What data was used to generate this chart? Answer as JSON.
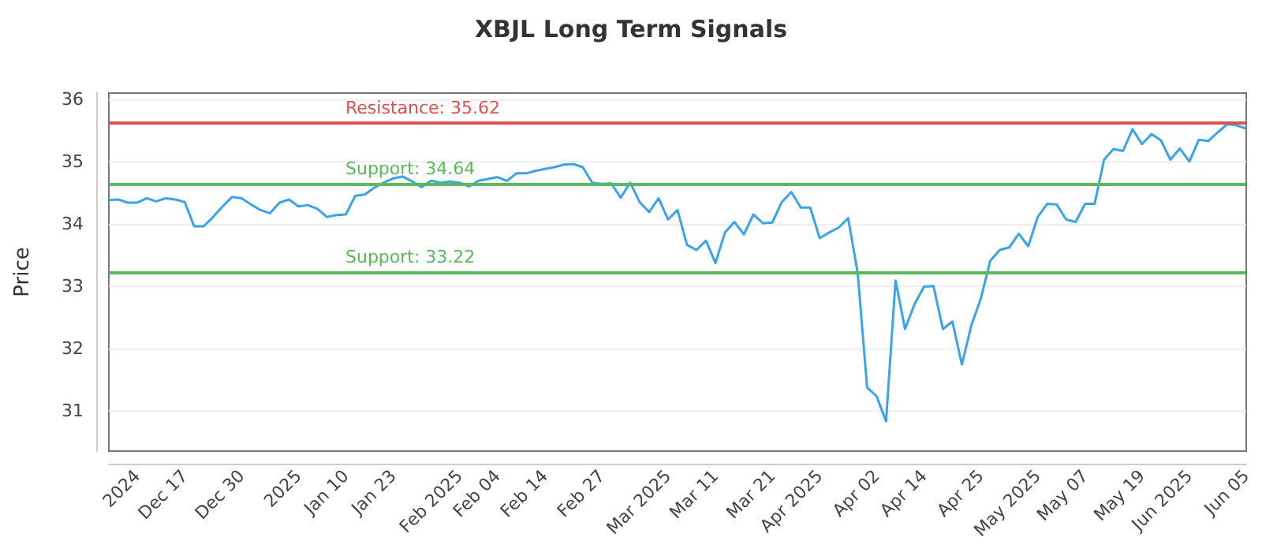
{
  "chart_data": {
    "type": "line",
    "title": "XBJL Long Term Signals",
    "ylabel": "Price",
    "categories": [
      null,
      null,
      null,
      "2024",
      null,
      null,
      null,
      null,
      "Dec 17",
      null,
      null,
      null,
      null,
      null,
      "Dec 30",
      null,
      null,
      null,
      null,
      null,
      "2025",
      null,
      null,
      null,
      null,
      "Jan 10",
      null,
      null,
      null,
      null,
      "Jan 23",
      null,
      null,
      null,
      null,
      null,
      null,
      "Feb 2025",
      null,
      null,
      null,
      "Feb 04",
      null,
      null,
      null,
      null,
      "Feb 14",
      null,
      null,
      null,
      null,
      null,
      "Feb 27",
      null,
      null,
      null,
      null,
      null,
      null,
      "Mar 2025",
      null,
      null,
      null,
      null,
      "Mar 11",
      null,
      null,
      null,
      null,
      null,
      "Mar 21",
      null,
      null,
      null,
      null,
      "Apr 2025",
      null,
      null,
      null,
      null,
      null,
      "Apr 02",
      null,
      null,
      null,
      null,
      "Apr 14",
      null,
      null,
      null,
      null,
      null,
      "Apr 25",
      null,
      null,
      null,
      null,
      null,
      "May 2025",
      null,
      null,
      null,
      null,
      "May 07",
      null,
      null,
      null,
      null,
      null,
      "May 19",
      null,
      null,
      null,
      null,
      "Jun 2025",
      null,
      null,
      null,
      null,
      null,
      "Jun 05"
    ],
    "series": [
      {
        "color": "#3ba3e8",
        "values": [
          34.38,
          34.39,
          34.34,
          34.34,
          34.41,
          34.36,
          34.41,
          34.39,
          34.35,
          33.96,
          33.96,
          34.11,
          34.28,
          34.43,
          34.41,
          34.31,
          34.22,
          34.17,
          34.34,
          34.39,
          34.28,
          34.3,
          34.24,
          34.11,
          34.14,
          34.15,
          34.45,
          34.47,
          34.58,
          34.66,
          34.73,
          34.76,
          34.68,
          34.59,
          34.69,
          34.66,
          34.68,
          34.66,
          34.6,
          34.69,
          34.72,
          34.75,
          34.69,
          34.81,
          34.81,
          34.85,
          34.88,
          34.91,
          34.95,
          34.96,
          34.91,
          34.66,
          34.64,
          34.65,
          34.42,
          34.66,
          34.35,
          34.19,
          34.41,
          34.07,
          34.22,
          33.66,
          33.58,
          33.73,
          33.37,
          33.86,
          34.03,
          33.83,
          34.15,
          34.01,
          34.02,
          34.35,
          34.51,
          34.26,
          34.26,
          33.77,
          33.86,
          33.94,
          34.09,
          33.22,
          31.37,
          31.23,
          30.83,
          33.09,
          32.31,
          32.71,
          32.99,
          33.0,
          32.31,
          32.43,
          31.74,
          32.37,
          32.8,
          33.41,
          33.58,
          33.62,
          33.84,
          33.64,
          34.11,
          34.32,
          34.31,
          34.07,
          34.03,
          34.32,
          34.32,
          35.03,
          35.2,
          35.17,
          35.52,
          35.28,
          35.44,
          35.34,
          35.03,
          35.21,
          35.0,
          35.35,
          35.33,
          35.47,
          35.6,
          35.58,
          35.53
        ]
      }
    ],
    "ylim": [
      30.35,
      36.1
    ],
    "yticks": [
      31,
      32,
      33,
      34,
      35,
      36
    ],
    "grid": "y",
    "marker": "none",
    "line_style": "solid",
    "ref_lines": [
      {
        "axis": "y",
        "value": 35.62,
        "label": "Resistance: 35.62",
        "color": "#d9534f"
      },
      {
        "axis": "y",
        "value": 34.64,
        "label": "Support: 34.64",
        "color": "#5cb85c"
      },
      {
        "axis": "y",
        "value": 33.22,
        "label": "Support: 33.22",
        "color": "#5cb85c"
      }
    ]
  }
}
